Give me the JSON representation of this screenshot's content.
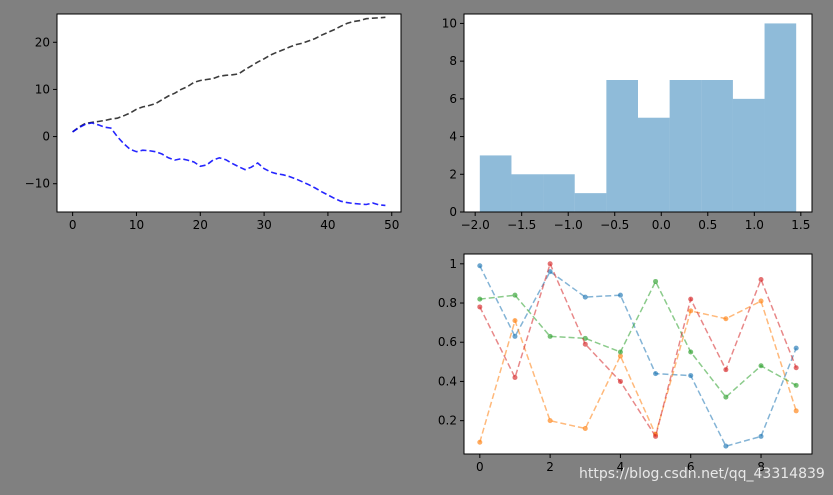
{
  "watermark": "https://blog.csdn.net/qq_43314839",
  "chart_data": [
    {
      "type": "line",
      "xlim": [
        -2.45,
        51.45
      ],
      "ylim": [
        -16,
        26
      ],
      "x": [
        0,
        1,
        2,
        3,
        4,
        5,
        6,
        7,
        8,
        9,
        10,
        11,
        12,
        13,
        14,
        15,
        16,
        17,
        18,
        19,
        20,
        21,
        22,
        23,
        24,
        25,
        26,
        27,
        28,
        29,
        30,
        31,
        32,
        33,
        34,
        35,
        36,
        37,
        38,
        39,
        40,
        41,
        42,
        43,
        44,
        45,
        46,
        47,
        48,
        49
      ],
      "xticks": [
        0,
        10,
        20,
        30,
        40,
        50
      ],
      "yticks": [
        -10,
        0,
        10,
        20
      ],
      "xlabel": "",
      "ylabel": "",
      "title": "",
      "grid": false,
      "series": [
        {
          "color": "#1a1a1a",
          "linestyle": "dashed",
          "values": [
            1.0,
            2.0,
            2.8,
            3.0,
            3.2,
            3.4,
            3.7,
            3.9,
            4.4,
            5.0,
            5.8,
            6.3,
            6.6,
            7.0,
            7.8,
            8.6,
            9.2,
            10.0,
            10.6,
            11.5,
            11.9,
            12.1,
            12.3,
            12.8,
            13.0,
            13.1,
            13.3,
            14.2,
            15.0,
            15.8,
            16.5,
            17.3,
            17.9,
            18.4,
            19.0,
            19.5,
            19.8,
            20.3,
            20.8,
            21.5,
            22.1,
            22.7,
            23.4,
            24.0,
            24.4,
            24.6,
            25.0,
            25.1,
            25.2,
            25.3
          ]
        },
        {
          "color": "#0000ff",
          "linestyle": "dashed",
          "values": [
            1.0,
            1.9,
            2.6,
            2.9,
            2.5,
            2.0,
            1.8,
            0.0,
            -1.5,
            -2.7,
            -3.2,
            -2.9,
            -3.0,
            -3.2,
            -3.7,
            -4.5,
            -5.0,
            -4.7,
            -5.0,
            -5.4,
            -6.3,
            -6.0,
            -5.0,
            -4.5,
            -4.9,
            -5.7,
            -6.4,
            -7.0,
            -6.5,
            -5.6,
            -6.8,
            -7.5,
            -7.9,
            -8.1,
            -8.5,
            -9.0,
            -9.6,
            -10.2,
            -10.9,
            -11.7,
            -12.4,
            -13.1,
            -13.7,
            -14.0,
            -14.2,
            -14.3,
            -14.4,
            -14.1,
            -14.5,
            -14.6
          ]
        }
      ]
    },
    {
      "type": "bar",
      "subtype": "histogram",
      "color": "#1f77b4",
      "alpha": 0.5,
      "bin_edges": [
        -1.95,
        -1.61,
        -1.27,
        -0.93,
        -0.59,
        -0.25,
        0.09,
        0.43,
        0.77,
        1.11,
        1.45
      ],
      "values": [
        3,
        2,
        2,
        1,
        7,
        5,
        7,
        7,
        6,
        10
      ],
      "xlim": [
        -2.12,
        1.62
      ],
      "ylim": [
        0,
        10.5
      ],
      "xticks": [
        -2.0,
        -1.5,
        -1.0,
        -0.5,
        0.0,
        0.5,
        1.0,
        1.5
      ],
      "xtick_labels": [
        "−2.0",
        "−1.5",
        "−1.0",
        "−0.5",
        "0.0",
        "0.5",
        "1.0",
        "1.5"
      ],
      "yticks": [
        0,
        2,
        4,
        6,
        8,
        10
      ],
      "xlabel": "",
      "ylabel": "",
      "title": "",
      "grid": false
    },
    {
      "type": "line",
      "xlim": [
        -0.45,
        9.45
      ],
      "ylim": [
        0.03,
        1.05
      ],
      "x": [
        0,
        1,
        2,
        3,
        4,
        5,
        6,
        7,
        8,
        9
      ],
      "xticks": [
        0,
        2,
        4,
        6,
        8
      ],
      "yticks": [
        0.2,
        0.4,
        0.6,
        0.8,
        1.0
      ],
      "xlabel": "",
      "ylabel": "",
      "title": "",
      "grid": false,
      "marker": "dot",
      "linestyle": "dashed",
      "alpha": 0.55,
      "series": [
        {
          "color": "#1f77b4",
          "values": [
            0.99,
            0.63,
            0.96,
            0.83,
            0.84,
            0.44,
            0.43,
            0.07,
            0.12,
            0.57
          ]
        },
        {
          "color": "#ff7f0e",
          "values": [
            0.09,
            0.71,
            0.2,
            0.16,
            0.53,
            0.13,
            0.76,
            0.72,
            0.81,
            0.25
          ]
        },
        {
          "color": "#2ca02c",
          "values": [
            0.82,
            0.84,
            0.63,
            0.62,
            0.55,
            0.91,
            0.55,
            0.32,
            0.48,
            0.38
          ]
        },
        {
          "color": "#d62728",
          "values": [
            0.78,
            0.42,
            1.0,
            0.59,
            0.4,
            0.12,
            0.82,
            0.46,
            0.92,
            0.47
          ]
        }
      ]
    }
  ]
}
